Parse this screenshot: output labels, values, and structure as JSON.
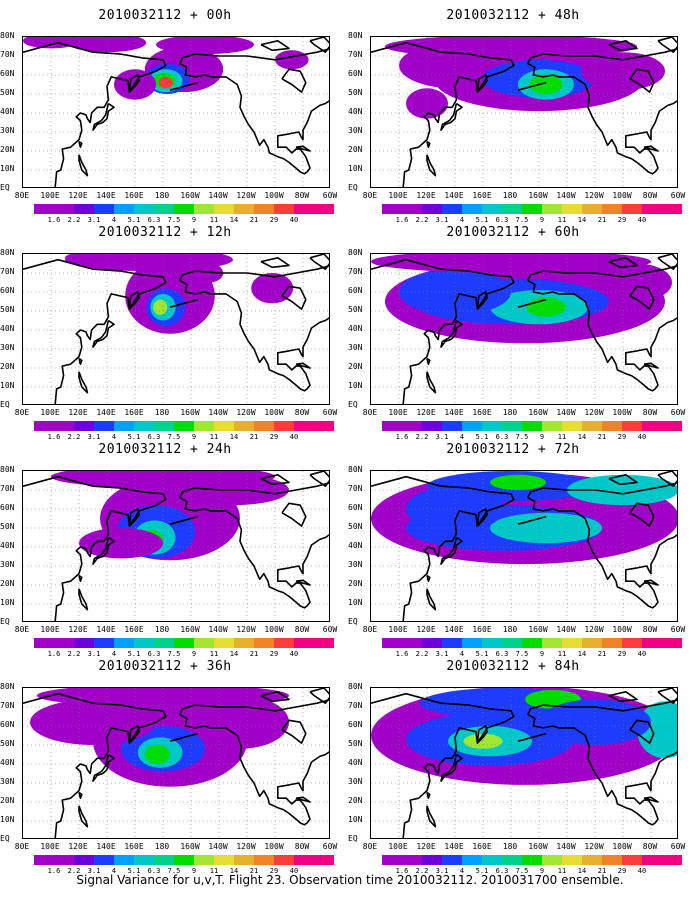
{
  "panels": [
    {
      "title": "2010032112 + 00h",
      "col": 0,
      "row": 0
    },
    {
      "title": "2010032112 + 48h",
      "col": 1,
      "row": 0
    },
    {
      "title": "2010032112 + 12h",
      "col": 0,
      "row": 1
    },
    {
      "title": "2010032112 + 60h",
      "col": 1,
      "row": 1
    },
    {
      "title": "2010032112 + 24h",
      "col": 0,
      "row": 2
    },
    {
      "title": "2010032112 + 72h",
      "col": 1,
      "row": 2
    },
    {
      "title": "2010032112 + 36h",
      "col": 0,
      "row": 3
    },
    {
      "title": "2010032112 + 84h",
      "col": 1,
      "row": 3
    }
  ],
  "lat_labels": [
    "80N",
    "70N",
    "60N",
    "50N",
    "40N",
    "30N",
    "20N",
    "10N",
    "EQ"
  ],
  "lon_labels": [
    "80E",
    "100E",
    "120E",
    "140E",
    "160E",
    "180",
    "160W",
    "140W",
    "120W",
    "100W",
    "80W",
    "60W"
  ],
  "colorbar": {
    "levels": [
      "1.6",
      "2.2",
      "3.1",
      "4",
      "5.1",
      "6.3",
      "7.5",
      "9",
      "11",
      "14",
      "21",
      "29",
      "40"
    ],
    "colors": [
      "#a000c8",
      "#6e00dc",
      "#1e3cff",
      "#00a0ff",
      "#00c8c8",
      "#00d28c",
      "#00dc00",
      "#a0e632",
      "#e6dc32",
      "#e6af2d",
      "#f08228",
      "#fa3c3c",
      "#f00082"
    ]
  },
  "footer": "Signal Variance for u,v,T. Flight 23. Observation time 2010032112. 2010031700 ensemble."
}
